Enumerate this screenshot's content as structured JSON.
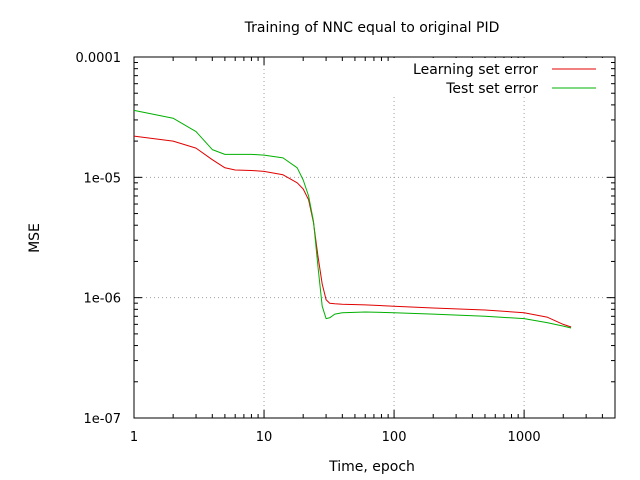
{
  "chart_data": {
    "type": "line",
    "title": "Training of NNC equal to original PID",
    "xlabel": "Time, epoch",
    "ylabel": "MSE",
    "xscale": "log",
    "yscale": "log",
    "xlim": [
      1,
      5000
    ],
    "ylim": [
      1e-07,
      0.0001
    ],
    "x_ticks": [
      {
        "value": 1,
        "label": "1"
      },
      {
        "value": 10,
        "label": "10"
      },
      {
        "value": 100,
        "label": "100"
      },
      {
        "value": 1000,
        "label": "1000"
      }
    ],
    "y_ticks": [
      {
        "value": 0.0001,
        "label": "0.0001"
      },
      {
        "value": 1e-05,
        "label": "1e-05"
      },
      {
        "value": 1e-06,
        "label": "1e-06"
      },
      {
        "value": 1e-07,
        "label": "1e-07"
      }
    ],
    "grid": true,
    "legend_position": "top-right",
    "series": [
      {
        "name": "Learning set error",
        "color": "#e00000",
        "x": [
          1,
          2,
          3,
          4,
          5,
          6,
          8,
          10,
          14,
          18,
          20,
          22,
          24,
          26,
          28,
          30,
          32,
          35,
          40,
          60,
          100,
          200,
          500,
          1000,
          1500,
          2000,
          2300
        ],
        "y": [
          2.2e-05,
          2e-05,
          1.75e-05,
          1.4e-05,
          1.2e-05,
          1.15e-05,
          1.14e-05,
          1.12e-05,
          1.05e-05,
          9e-06,
          8e-06,
          6.5e-06,
          4.2e-06,
          2.2e-06,
          1.3e-06,
          9.6e-07,
          9e-07,
          8.9e-07,
          8.8e-07,
          8.7e-07,
          8.5e-07,
          8.2e-07,
          7.9e-07,
          7.5e-07,
          6.9e-07,
          6e-07,
          5.7e-07
        ]
      },
      {
        "name": "Test set error",
        "color": "#00b000",
        "x": [
          1,
          2,
          3,
          4,
          5,
          6,
          8,
          10,
          14,
          18,
          20,
          22,
          24,
          26,
          28,
          30,
          32,
          35,
          40,
          60,
          100,
          200,
          500,
          1000,
          1500,
          2000,
          2300
        ],
        "y": [
          3.6e-05,
          3.1e-05,
          2.4e-05,
          1.7e-05,
          1.55e-05,
          1.55e-05,
          1.55e-05,
          1.53e-05,
          1.45e-05,
          1.2e-05,
          9.5e-06,
          7e-06,
          4.3e-06,
          1.8e-06,
          8.5e-07,
          6.7e-07,
          6.8e-07,
          7.3e-07,
          7.5e-07,
          7.6e-07,
          7.5e-07,
          7.3e-07,
          7e-07,
          6.7e-07,
          6.2e-07,
          5.8e-07,
          5.6e-07
        ]
      }
    ]
  }
}
